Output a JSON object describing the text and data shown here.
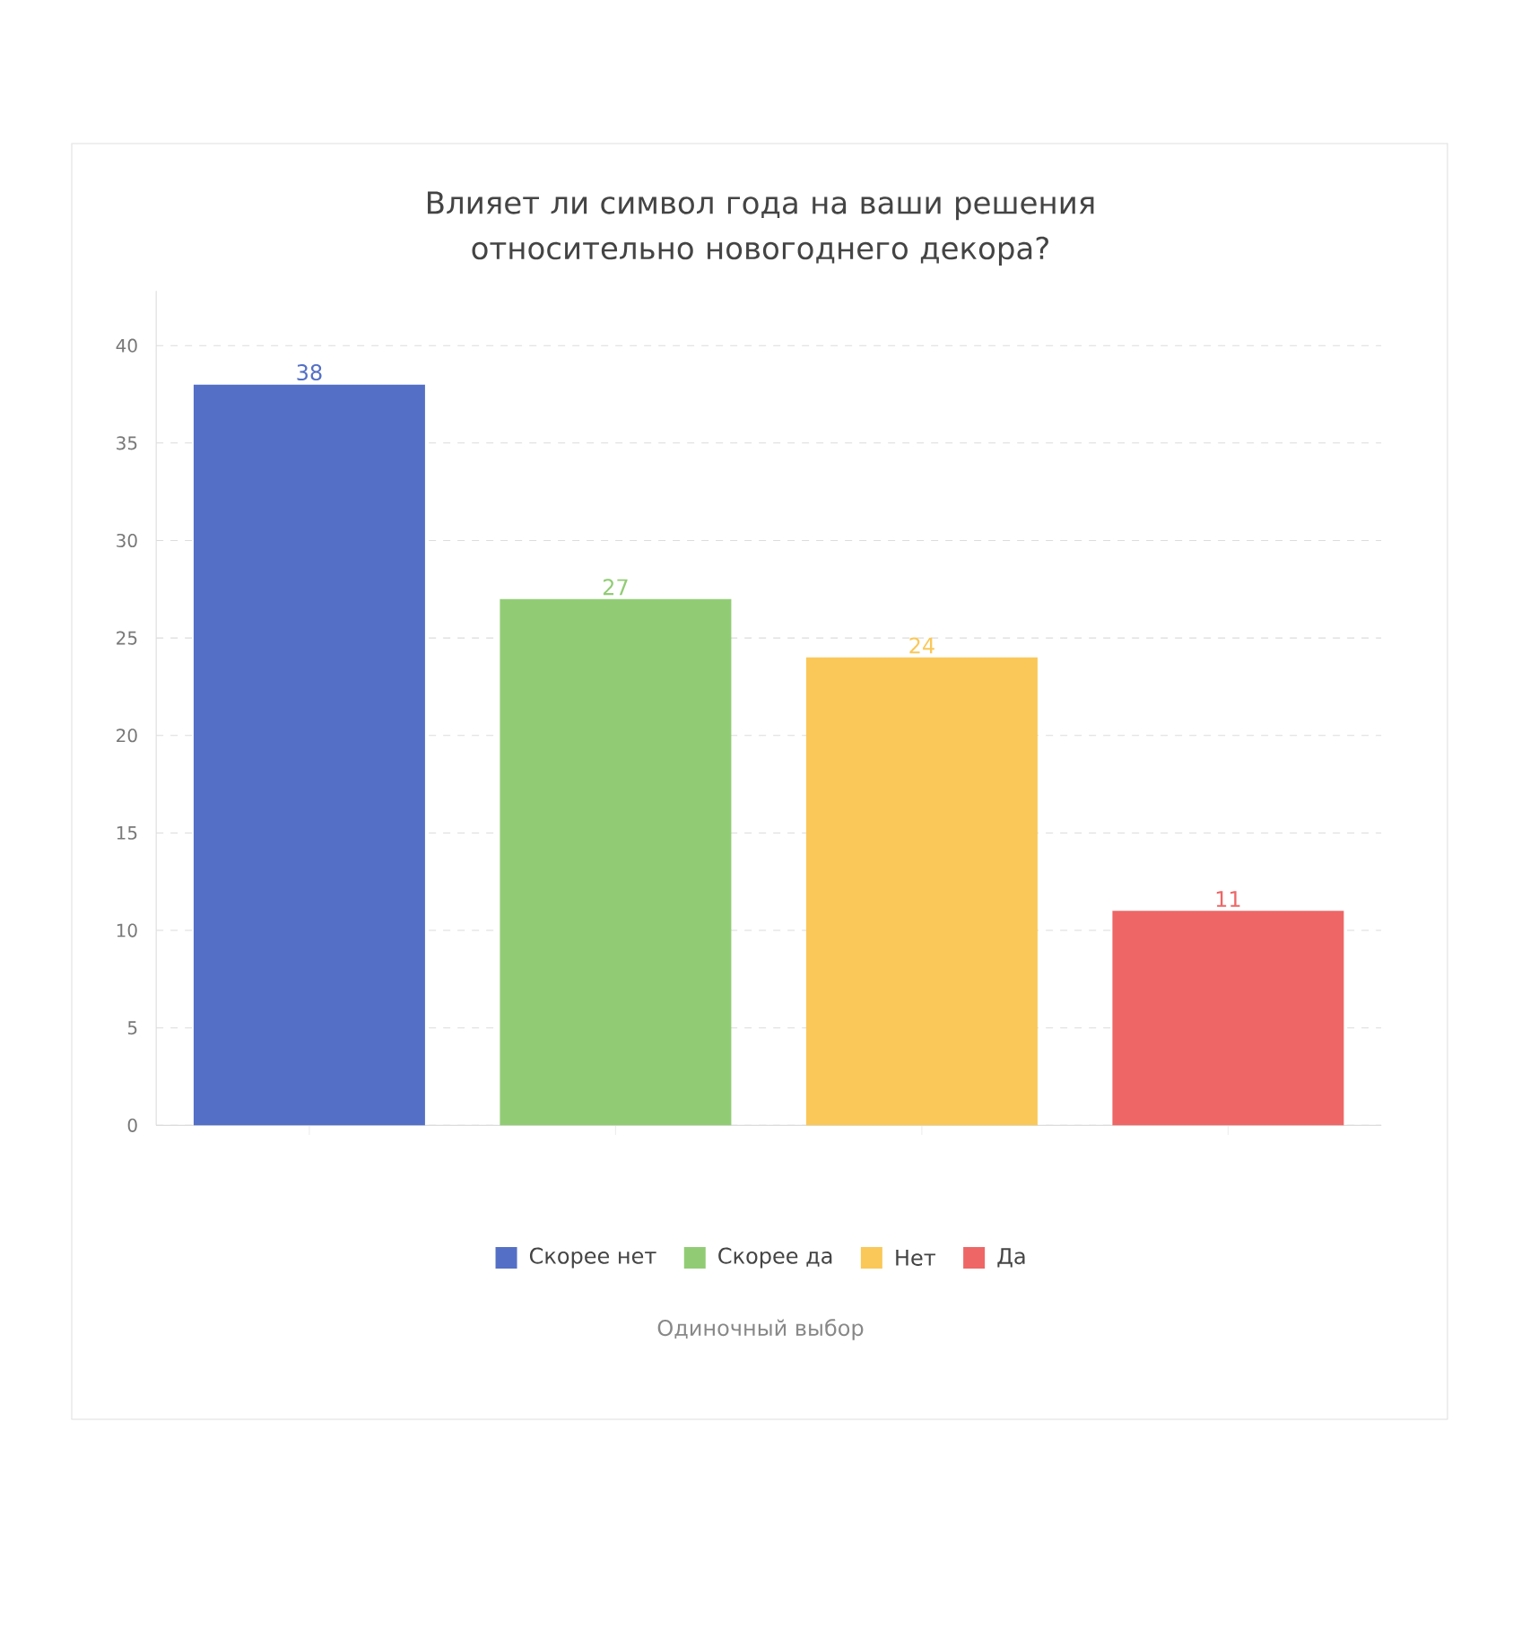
{
  "chart_data": {
    "type": "bar",
    "title": "Влияет ли символ года на ваши решения относительно новогоднего декора?",
    "categories": [
      null,
      null,
      null,
      null
    ],
    "series": [
      {
        "name": "Скорее нет",
        "color": "#5470c6",
        "values": [
          38,
          null,
          null,
          null
        ]
      },
      {
        "name": "Скорее да",
        "color": "#91cc75",
        "values": [
          null,
          27,
          null,
          null
        ]
      },
      {
        "name": "Нет",
        "color": "#fac858",
        "values": [
          null,
          null,
          24,
          null
        ]
      },
      {
        "name": "Да",
        "color": "#ee6666",
        "values": [
          null,
          null,
          null,
          11
        ]
      }
    ],
    "ylim": [
      0,
      42.8
    ],
    "yticks": [
      0,
      5,
      10,
      15,
      20,
      25,
      30,
      35,
      40
    ],
    "grid": "y",
    "legend": "bottom",
    "data_labels": true,
    "annotations": [
      "Одиночный выбор"
    ]
  }
}
